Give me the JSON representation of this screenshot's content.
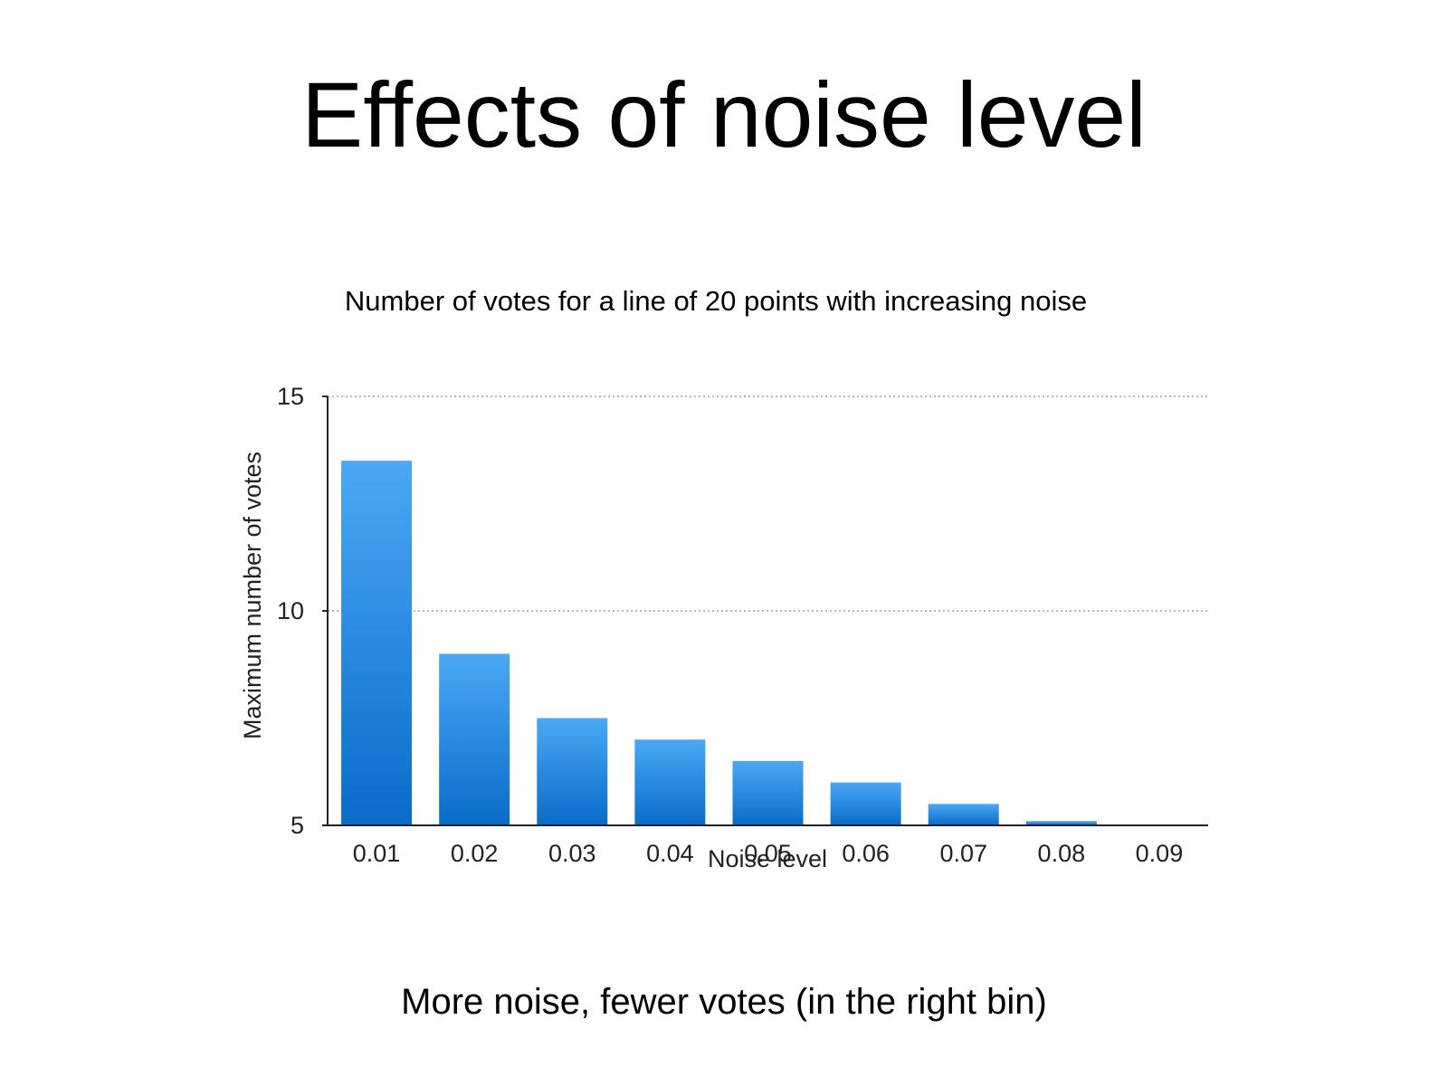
{
  "slide": {
    "title": "Effects of noise level",
    "caption": "More noise, fewer votes (in the right bin)"
  },
  "colors": {
    "bar_top": "#4aa8f5",
    "bar_bottom": "#0a6cc9",
    "gridline": "#b8b8b8",
    "axis": "#222222"
  },
  "chart_data": {
    "type": "bar",
    "title": "Number of votes for a line of 20 points with increasing noise",
    "xlabel": "Noise level",
    "ylabel": "Maximum number of votes",
    "categories": [
      "0.01",
      "0.02",
      "0.03",
      "0.04",
      "0.05",
      "0.06",
      "0.07",
      "0.08",
      "0.09"
    ],
    "values": [
      13.5,
      9,
      7.5,
      7,
      6.5,
      6,
      5.5,
      5.1,
      5
    ],
    "ylim": [
      5,
      15
    ],
    "yticks": [
      "5",
      "10",
      "15"
    ],
    "ytick_values": [
      5,
      10,
      15
    ],
    "grid": true,
    "legend": "none"
  }
}
